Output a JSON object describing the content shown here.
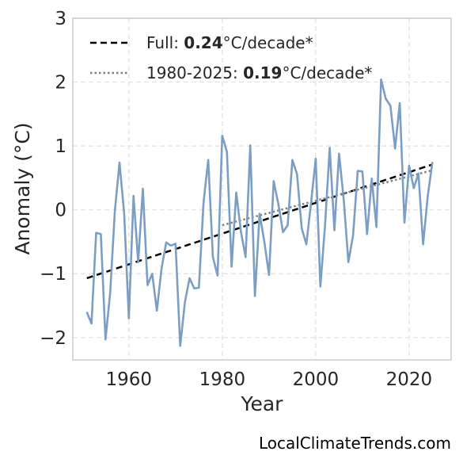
{
  "chart_data": {
    "type": "line",
    "xlabel": "Year",
    "ylabel": "Anomaly (°C)",
    "xlim": [
      1948,
      2029
    ],
    "ylim": [
      -2.35,
      3.0
    ],
    "xticks": [
      1960,
      1980,
      2000,
      2020
    ],
    "yticks": [
      -2,
      -1,
      0,
      1,
      2,
      3
    ],
    "ytick_labels": [
      "−2",
      "−1",
      "0",
      "1",
      "2",
      "3"
    ],
    "grid": true,
    "legend_position": "top-left",
    "series": [
      {
        "color": "#7b9ec4",
        "x": [
          1951,
          1952,
          1953,
          1954,
          1955,
          1956,
          1957,
          1958,
          1959,
          1960,
          1961,
          1962,
          1963,
          1964,
          1965,
          1966,
          1967,
          1968,
          1969,
          1970,
          1971,
          1972,
          1973,
          1974,
          1975,
          1976,
          1977,
          1978,
          1979,
          1980,
          1981,
          1982,
          1983,
          1984,
          1985,
          1986,
          1987,
          1988,
          1989,
          1990,
          1991,
          1992,
          1993,
          1994,
          1995,
          1996,
          1997,
          1998,
          1999,
          2000,
          2001,
          2002,
          2003,
          2004,
          2005,
          2006,
          2007,
          2008,
          2009,
          2010,
          2011,
          2012,
          2013,
          2014,
          2015,
          2016,
          2017,
          2018,
          2019,
          2020,
          2021,
          2022,
          2023,
          2024,
          2025
        ],
        "values": [
          -1.6,
          -1.78,
          -0.36,
          -0.38,
          -2.03,
          -1.3,
          -0.02,
          0.74,
          -0.06,
          -1.7,
          0.22,
          -0.82,
          0.33,
          -1.18,
          -1.0,
          -1.58,
          -0.92,
          -0.51,
          -0.56,
          -0.53,
          -2.13,
          -1.45,
          -1.07,
          -1.23,
          -1.22,
          0.12,
          0.78,
          -0.74,
          -1.03,
          1.16,
          0.91,
          -0.89,
          0.27,
          -0.34,
          -0.74,
          1.01,
          -1.35,
          -0.06,
          -0.5,
          -1.02,
          0.45,
          0.09,
          -0.35,
          -0.24,
          0.78,
          0.56,
          -0.29,
          -0.54,
          0.11,
          0.8,
          -1.2,
          -0.24,
          0.97,
          -0.32,
          0.88,
          0.16,
          -0.82,
          -0.4,
          0.61,
          0.6,
          -0.38,
          0.49,
          -0.27,
          2.04,
          1.74,
          1.63,
          0.96,
          1.67,
          -0.2,
          0.69,
          0.34,
          0.57,
          -0.54,
          0.22,
          0.75
        ]
      }
    ],
    "trends": [
      {
        "label_prefix": "Full: ",
        "label_value": "0.24",
        "label_suffix": "°C/decade*",
        "style": "dashed",
        "color": "#000000",
        "x": [
          1951,
          2025
        ],
        "y": [
          -1.07,
          0.71
        ]
      },
      {
        "label_prefix": "1980-2025: ",
        "label_value": "0.19",
        "label_suffix": "°C/decade*",
        "style": "dotted",
        "color": "#808080",
        "x": [
          1980,
          2025
        ],
        "y": [
          -0.24,
          0.62
        ]
      }
    ]
  },
  "watermark": "LocalClimateTrends.com"
}
